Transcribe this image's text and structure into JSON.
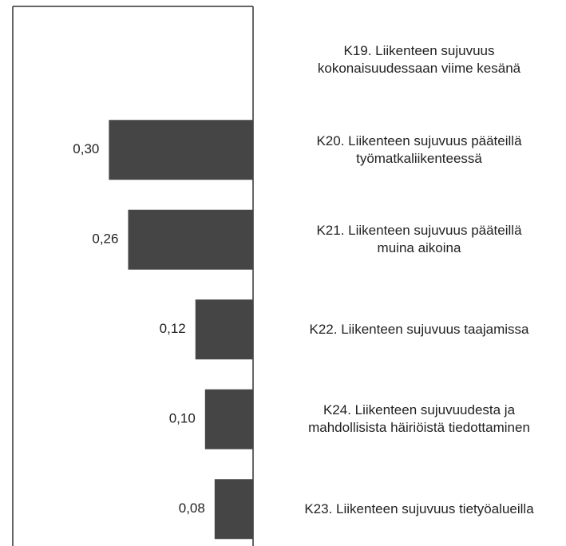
{
  "chart_data": {
    "type": "barh",
    "categories": [
      "K19. Liikenteen sujuvuus\nkokonaisuudessaan viime kesänä",
      "K20. Liikenteen sujuvuus pääteillä\ntyömatkaliikenteessä",
      "K21. Liikenteen sujuvuus pääteillä\nmuina aikoina",
      "K22. Liikenteen sujuvuus taajamissa",
      "K24. Liikenteen sujuvuudesta ja\nmahdollisista häiriöistä tiedottaminen",
      "K23. Liikenteen sujuvuus tietyöalueilla"
    ],
    "values": [
      null,
      0.3,
      0.26,
      0.12,
      0.1,
      0.08
    ],
    "value_labels": [
      null,
      "0,30",
      "0,26",
      "0,12",
      "0,10",
      "0,08"
    ],
    "color": "#454545",
    "xlim": [
      0.5,
      0
    ]
  }
}
